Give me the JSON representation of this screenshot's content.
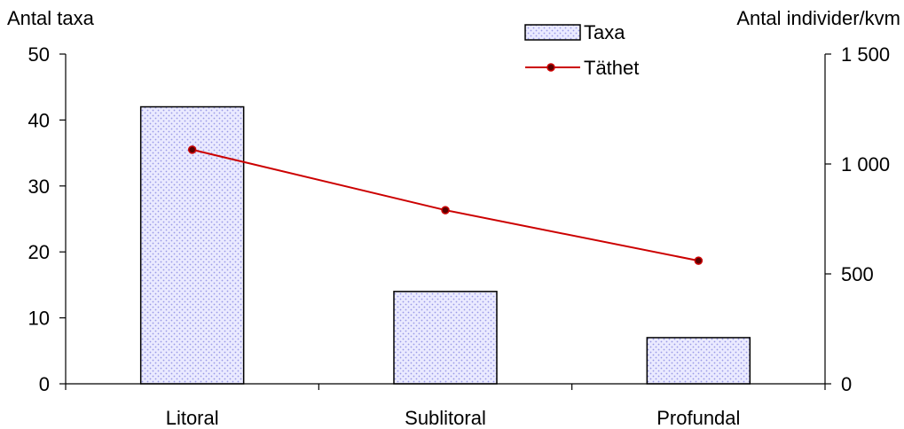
{
  "chart_data": {
    "type": "bar",
    "categories": [
      "Litoral",
      "Sublitoral",
      "Profundal"
    ],
    "series": [
      {
        "name": "Taxa",
        "type": "bar",
        "axis": "left",
        "values": [
          42,
          14,
          7
        ]
      },
      {
        "name": "Täthet",
        "type": "line",
        "axis": "right",
        "values": [
          1065,
          790,
          560
        ]
      }
    ],
    "y_left": {
      "label": "Antal taxa",
      "ylim": [
        0,
        50
      ],
      "ticks": [
        0,
        10,
        20,
        30,
        40,
        50
      ],
      "tick_labels": [
        "0",
        "10",
        "20",
        "30",
        "40",
        "50"
      ]
    },
    "y_right": {
      "label": "Antal individer/kvm",
      "ylim": [
        0,
        1500
      ],
      "ticks": [
        0,
        500,
        1000,
        1500
      ],
      "tick_labels": [
        "0",
        "500",
        "1 000",
        "1 500"
      ]
    },
    "grid": false,
    "legend_placement": "top-right",
    "colors": {
      "bar_fill": "#e6e6ff",
      "bar_dots": "#9a9ae6",
      "line": "#cc0000",
      "marker": "#5a0000"
    }
  }
}
